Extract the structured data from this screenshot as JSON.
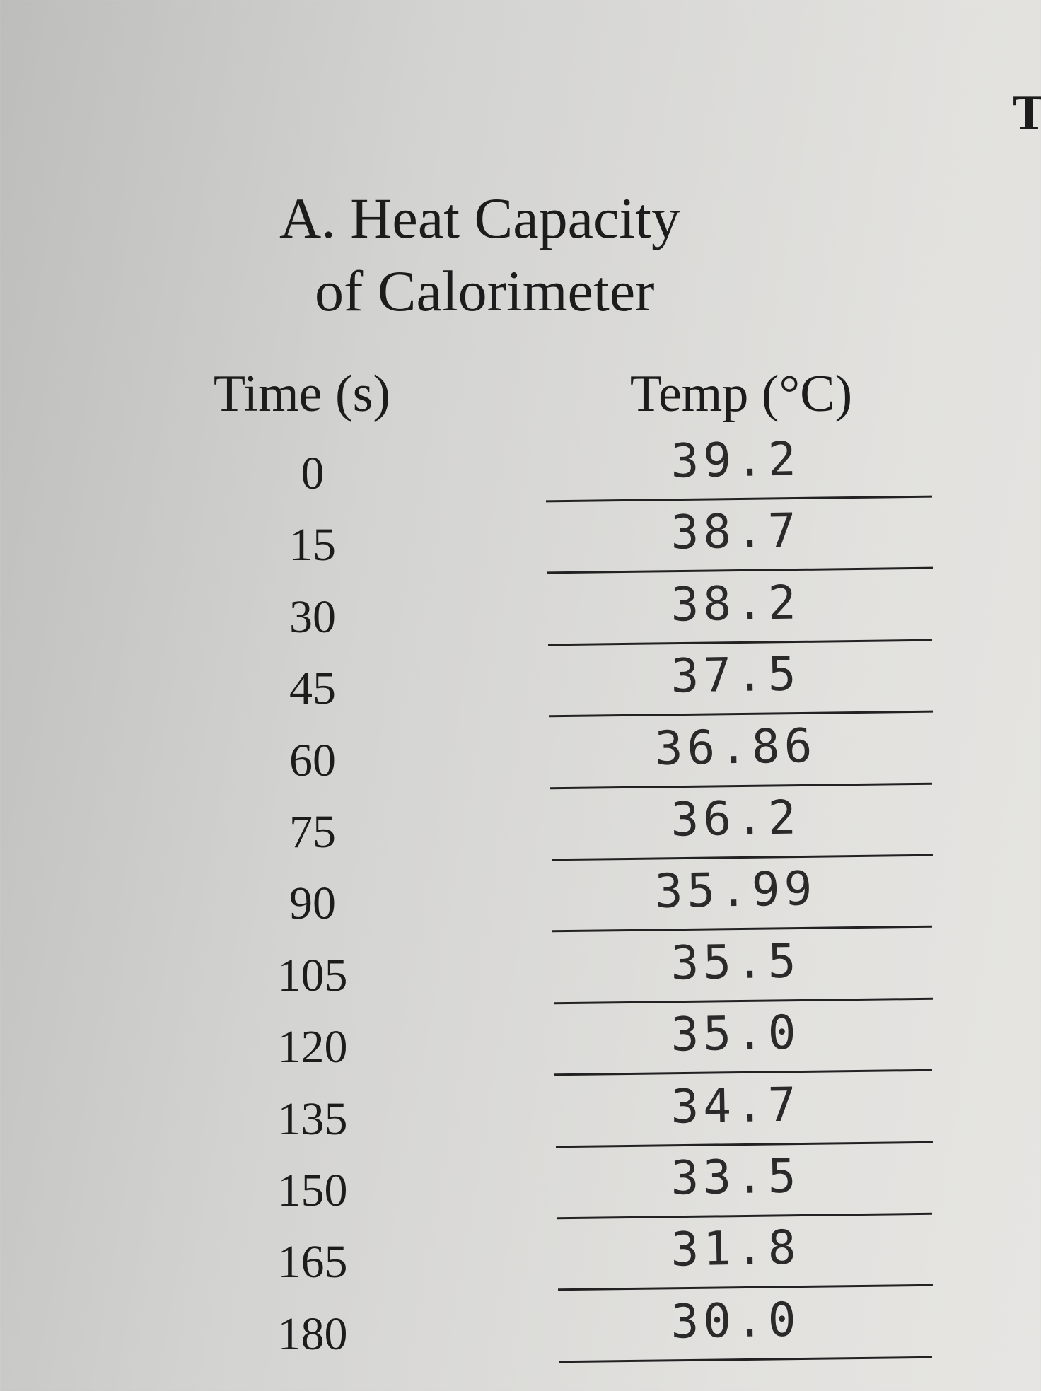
{
  "corner_text": "T",
  "title_lines": [
    "A. Heat Capacity",
    "of Calorimeter"
  ],
  "table": {
    "headers": [
      "Time (s)",
      "Temp (°C)"
    ],
    "rows": [
      [
        "0",
        "39.2"
      ],
      [
        "15",
        "38.7"
      ],
      [
        "30",
        "38.2"
      ],
      [
        "45",
        "37.5"
      ],
      [
        "60",
        "36.86"
      ],
      [
        "75",
        "36.2"
      ],
      [
        "90",
        "35.99"
      ],
      [
        "105",
        "35.5"
      ],
      [
        "120",
        "35.0"
      ],
      [
        "135",
        "34.7"
      ],
      [
        "150",
        "33.5"
      ],
      [
        "165",
        "31.8"
      ],
      [
        "180",
        "30.0"
      ]
    ]
  }
}
